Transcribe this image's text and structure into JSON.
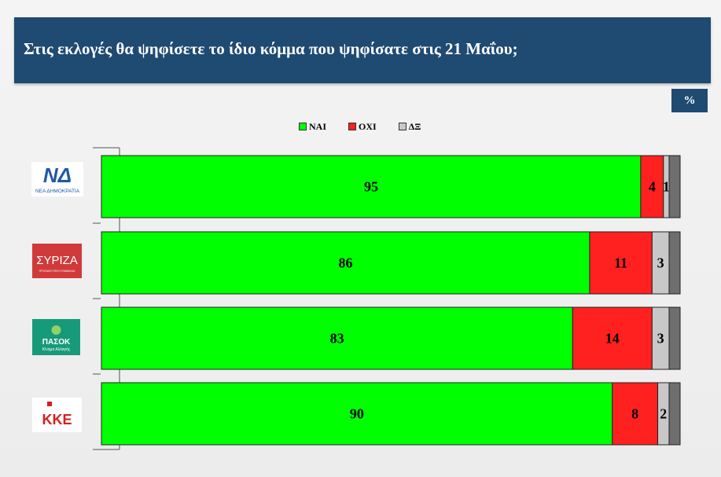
{
  "header": {
    "title": "Στις εκλογές θα ψηφίσετε το ίδιο κόμμα που ψηφίσατε στις 21 Μαΐου;"
  },
  "unit_badge": "%",
  "logos": {
    "nd": {
      "text": "ΝΔ",
      "subtext": "ΝΕΑ ΔΗΜΟΚΡΑΤΙΑ",
      "color": "#1f5aa6"
    },
    "syriza": {
      "text": "ΣΥΡΙΖΑ",
      "subtext": "ΠΡΟΟΔΕΥΤΙΚΗ ΣΥΜΜΑΧΙΑ",
      "color": "#d03a3a"
    },
    "pasok": {
      "text": "ΠΑΣΟΚ",
      "subtext": "Κίνημα Αλλαγής",
      "color": "#179a7a"
    },
    "kke": {
      "text": "ΚΚΕ",
      "color": "#d62020"
    }
  },
  "chart_data": {
    "type": "bar",
    "orientation": "horizontal",
    "stacked": true,
    "categories": [
      "ΝΔ",
      "ΣΥΡΙΖΑ",
      "ΠΑΣΟΚ",
      "ΚΚΕ"
    ],
    "series": [
      {
        "name": "ΝΑΙ",
        "color": "#00ff00",
        "values": [
          95,
          86,
          83,
          90
        ]
      },
      {
        "name": "ΟΧΙ",
        "color": "#ff2020",
        "values": [
          4,
          11,
          14,
          8
        ]
      },
      {
        "name": "ΔΞ",
        "color": "#c8c8c8",
        "values": [
          1,
          3,
          3,
          2
        ]
      }
    ],
    "xlim": [
      0,
      100
    ],
    "legend_position": "top",
    "grid": false
  }
}
